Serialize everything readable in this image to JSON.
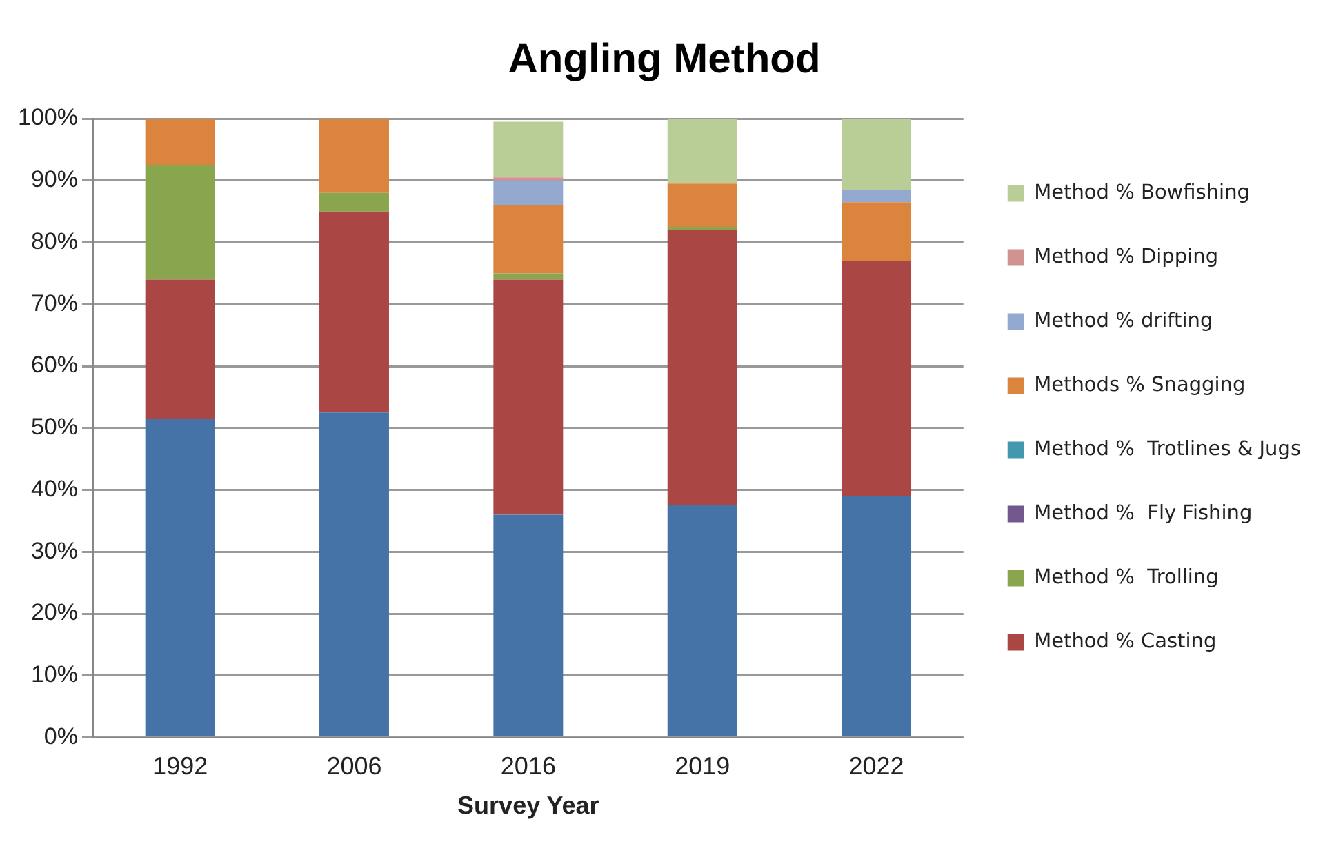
{
  "chart_data": {
    "type": "bar",
    "title": "Angling Method",
    "xlabel": "Survey Year",
    "categories": [
      "1992",
      "2006",
      "2016",
      "2019",
      "2022"
    ],
    "stacked": true,
    "ylim": [
      0,
      100
    ],
    "yticks": [
      {
        "value": 0,
        "label": "0%"
      },
      {
        "value": 10,
        "label": "10%"
      },
      {
        "value": 20,
        "label": "20%"
      },
      {
        "value": 30,
        "label": "30%"
      },
      {
        "value": 40,
        "label": "40%"
      },
      {
        "value": 50,
        "label": "50%"
      },
      {
        "value": 60,
        "label": "60%"
      },
      {
        "value": 70,
        "label": "70%"
      },
      {
        "value": 80,
        "label": "80%"
      },
      {
        "value": 90,
        "label": "90%"
      },
      {
        "value": 100,
        "label": "100%"
      }
    ],
    "grid": "y",
    "legend": "right",
    "series": [
      {
        "color": "#4572a7",
        "values": [
          51.5,
          52.5,
          36,
          37.5,
          39
        ]
      },
      {
        "name": "Method % Casting",
        "color": "#aa4643",
        "values": [
          22.5,
          32.5,
          38,
          44.5,
          38
        ]
      },
      {
        "name": "Method %  Trolling",
        "color": "#89a54e",
        "values": [
          18.5,
          3,
          1,
          0.5,
          0
        ]
      },
      {
        "name": "Method %  Fly Fishing",
        "color": "#71588f",
        "values": [
          0,
          0,
          0,
          0,
          0
        ]
      },
      {
        "name": "Method %  Trotlines & Jugs",
        "color": "#4198af",
        "values": [
          0,
          0,
          0,
          0,
          0
        ]
      },
      {
        "name": "Methods % Snagging",
        "color": "#db843d",
        "values": [
          7.5,
          12,
          11,
          7,
          9.5
        ]
      },
      {
        "name": "Method % drifting",
        "color": "#93a9cf",
        "values": [
          0,
          0,
          4,
          0,
          2
        ]
      },
      {
        "name": "Method % Dipping",
        "color": "#d19392",
        "values": [
          0,
          0,
          0.5,
          0,
          0
        ]
      },
      {
        "name": "Method % Bowfishing",
        "color": "#b9cd96",
        "values": [
          0,
          0,
          9,
          10.5,
          11.5
        ]
      }
    ]
  }
}
